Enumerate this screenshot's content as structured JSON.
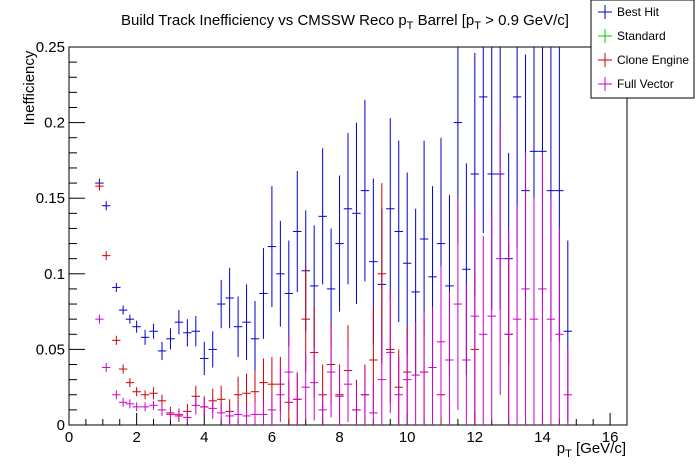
{
  "chart_data": {
    "type": "scatter",
    "title": "Build Track Inefficiency vs CMSSW Reco pT Barrel [pT > 0.9 GeV/c]",
    "title_parts": {
      "t1": "Build Track Inefficiency vs CMSSW Reco p",
      "sub1": "T",
      "t2": " Barrel [p",
      "sub2": "T",
      "t3": " > 0.9 GeV/c]"
    },
    "xlabel": "pT [GeV/c]",
    "xlabel_parts": {
      "main": "p",
      "sub": "T",
      "rest": " [GeV/c]"
    },
    "ylabel": "Inefficiency",
    "xlim": [
      0,
      16.5
    ],
    "ylim": [
      0,
      0.25
    ],
    "x_ticks": [
      "0",
      "2",
      "4",
      "6",
      "8",
      "10",
      "12",
      "14",
      "16"
    ],
    "y_ticks": [
      "0",
      "0.05",
      "0.1",
      "0.15",
      "0.2",
      "0.25"
    ],
    "legend_position": "top-right",
    "series": [
      {
        "name": "Best Hit",
        "color": "#0000cc",
        "points": [
          [
            0.9,
            0.16,
            0.003
          ],
          [
            1.1,
            0.145,
            0.003
          ],
          [
            1.4,
            0.091,
            0.003
          ],
          [
            1.6,
            0.076,
            0.003
          ],
          [
            1.8,
            0.07,
            0.003
          ],
          [
            2.0,
            0.065,
            0.004
          ],
          [
            2.25,
            0.058,
            0.005
          ],
          [
            2.5,
            0.062,
            0.005
          ],
          [
            2.75,
            0.049,
            0.006
          ],
          [
            3.0,
            0.057,
            0.007
          ],
          [
            3.25,
            0.068,
            0.008
          ],
          [
            3.5,
            0.061,
            0.009
          ],
          [
            3.75,
            0.062,
            0.01
          ],
          [
            4.0,
            0.044,
            0.011
          ],
          [
            4.25,
            0.05,
            0.012
          ],
          [
            4.5,
            0.08,
            0.016
          ],
          [
            4.75,
            0.084,
            0.02
          ],
          [
            5.0,
            0.065,
            0.02
          ],
          [
            5.25,
            0.068,
            0.025
          ],
          [
            5.5,
            0.057,
            0.025
          ],
          [
            5.75,
            0.087,
            0.03
          ],
          [
            6.0,
            0.118,
            0.04
          ],
          [
            6.25,
            0.1,
            0.035
          ],
          [
            6.5,
            0.087,
            0.035
          ],
          [
            6.75,
            0.128,
            0.04
          ],
          [
            7.0,
            0.102,
            0.04
          ],
          [
            7.25,
            0.092,
            0.04
          ],
          [
            7.5,
            0.138,
            0.045
          ],
          [
            7.75,
            0.09,
            0.04
          ],
          [
            8.0,
            0.12,
            0.045
          ],
          [
            8.25,
            0.143,
            0.05
          ],
          [
            8.5,
            0.14,
            0.06
          ],
          [
            8.75,
            0.155,
            0.06
          ],
          [
            9.0,
            0.108,
            0.055
          ],
          [
            9.25,
            0.093,
            0.05
          ],
          [
            9.5,
            0.143,
            0.06
          ],
          [
            9.75,
            0.128,
            0.06
          ],
          [
            10.0,
            0.107,
            0.06
          ],
          [
            10.25,
            0.088,
            0.055
          ],
          [
            10.5,
            0.123,
            0.065
          ],
          [
            10.75,
            0.098,
            0.06
          ],
          [
            11.0,
            0.12,
            0.07
          ],
          [
            11.25,
            0.092,
            0.06
          ],
          [
            11.5,
            0.2,
            0.08
          ],
          [
            11.75,
            0.103,
            0.07
          ],
          [
            12.0,
            0.166,
            0.08
          ],
          [
            12.25,
            0.217,
            0.09
          ],
          [
            12.5,
            0.166,
            0.09
          ],
          [
            12.75,
            0.166,
            0.09
          ],
          [
            13.0,
            0.11,
            0.07
          ],
          [
            13.25,
            0.217,
            0.1
          ],
          [
            13.5,
            0.155,
            0.09
          ],
          [
            13.75,
            0.181,
            0.1
          ],
          [
            14.0,
            0.181,
            0.1
          ],
          [
            14.25,
            0.155,
            0.1
          ],
          [
            14.5,
            0.155,
            0.1
          ],
          [
            14.75,
            0.062,
            0.06
          ]
        ]
      },
      {
        "name": "Standard",
        "color": "#00cc00",
        "points": []
      },
      {
        "name": "Clone Engine",
        "color": "#cc0000",
        "points": [
          [
            0.9,
            0.158,
            0.003
          ],
          [
            1.1,
            0.112,
            0.003
          ],
          [
            1.4,
            0.056,
            0.003
          ],
          [
            1.6,
            0.037,
            0.003
          ],
          [
            1.8,
            0.028,
            0.003
          ],
          [
            2.0,
            0.022,
            0.003
          ],
          [
            2.25,
            0.02,
            0.003
          ],
          [
            2.5,
            0.021,
            0.004
          ],
          [
            2.75,
            0.016,
            0.004
          ],
          [
            3.0,
            0.008,
            0.004
          ],
          [
            3.25,
            0.006,
            0.004
          ],
          [
            3.5,
            0.009,
            0.005
          ],
          [
            3.75,
            0.019,
            0.007
          ],
          [
            4.0,
            0.012,
            0.007
          ],
          [
            4.25,
            0.016,
            0.008
          ],
          [
            4.5,
            0.017,
            0.009
          ],
          [
            4.75,
            0.009,
            0.008
          ],
          [
            5.0,
            0.02,
            0.012
          ],
          [
            5.25,
            0.021,
            0.013
          ],
          [
            5.5,
            0.022,
            0.014
          ],
          [
            5.75,
            0.028,
            0.016
          ],
          [
            6.0,
            0.027,
            0.018
          ],
          [
            6.25,
            0.027,
            0.018
          ],
          [
            6.5,
            0.015,
            0.015
          ],
          [
            6.75,
            0.017,
            0.017
          ],
          [
            7.0,
            0.07,
            0.035
          ],
          [
            7.25,
            0.048,
            0.03
          ],
          [
            7.5,
            0.02,
            0.02
          ],
          [
            7.75,
            0.04,
            0.027
          ],
          [
            8.0,
            0.02,
            0.02
          ],
          [
            8.25,
            0.036,
            0.03
          ],
          [
            8.5,
            0.01,
            0.02
          ],
          [
            8.75,
            0.02,
            0.02
          ],
          [
            9.0,
            0.043,
            0.035
          ],
          [
            9.25,
            0.1,
            0.06
          ],
          [
            9.5,
            0.05,
            0.035
          ],
          [
            9.75,
            0.025,
            0.025
          ],
          [
            10.0,
            0.035,
            0.03
          ],
          [
            10.5,
            0.035,
            0.035
          ],
          [
            11.0,
            0.02,
            0.02
          ],
          [
            12.0,
            0.05,
            0.05
          ],
          [
            13.0,
            0.06,
            0.06
          ]
        ]
      },
      {
        "name": "Full Vector",
        "color": "#cc00cc",
        "points": [
          [
            0.9,
            0.07,
            0.003
          ],
          [
            1.1,
            0.038,
            0.003
          ],
          [
            1.4,
            0.02,
            0.003
          ],
          [
            1.6,
            0.015,
            0.003
          ],
          [
            1.8,
            0.014,
            0.003
          ],
          [
            2.0,
            0.012,
            0.003
          ],
          [
            2.25,
            0.012,
            0.003
          ],
          [
            2.5,
            0.013,
            0.003
          ],
          [
            2.75,
            0.01,
            0.004
          ],
          [
            3.0,
            0.007,
            0.004
          ],
          [
            3.25,
            0.007,
            0.004
          ],
          [
            3.5,
            0.005,
            0.004
          ],
          [
            3.75,
            0.013,
            0.006
          ],
          [
            4.0,
            0.012,
            0.006
          ],
          [
            4.25,
            0.011,
            0.007
          ],
          [
            4.5,
            0.008,
            0.006
          ],
          [
            4.75,
            0.006,
            0.006
          ],
          [
            5.0,
            0.007,
            0.007
          ],
          [
            5.25,
            0.006,
            0.007
          ],
          [
            5.5,
            0.007,
            0.008
          ],
          [
            5.75,
            0.007,
            0.009
          ],
          [
            6.0,
            0.01,
            0.01
          ],
          [
            6.25,
            0.02,
            0.018
          ],
          [
            6.5,
            0.035,
            0.025
          ],
          [
            6.75,
            0.017,
            0.018
          ],
          [
            7.0,
            0.025,
            0.022
          ],
          [
            7.25,
            0.028,
            0.025
          ],
          [
            7.5,
            0.01,
            0.012
          ],
          [
            7.75,
            0.035,
            0.03
          ],
          [
            8.0,
            0.019,
            0.02
          ],
          [
            8.25,
            0.027,
            0.025
          ],
          [
            8.5,
            0.01,
            0.015
          ],
          [
            8.75,
            0.02,
            0.02
          ],
          [
            9.0,
            0.008,
            0.02
          ],
          [
            9.25,
            0.03,
            0.03
          ],
          [
            9.5,
            0.048,
            0.04
          ],
          [
            9.75,
            0.02,
            0.025
          ],
          [
            10.0,
            0.03,
            0.03
          ],
          [
            10.25,
            0.033,
            0.035
          ],
          [
            10.5,
            0.035,
            0.04
          ],
          [
            10.75,
            0.038,
            0.04
          ],
          [
            11.0,
            0.055,
            0.05
          ],
          [
            11.25,
            0.043,
            0.045
          ],
          [
            11.5,
            0.08,
            0.07
          ],
          [
            11.75,
            0.043,
            0.05
          ],
          [
            12.0,
            0.072,
            0.07
          ],
          [
            12.25,
            0.06,
            0.065
          ],
          [
            12.5,
            0.072,
            0.07
          ],
          [
            12.75,
            0.11,
            0.09
          ],
          [
            13.0,
            0.06,
            0.07
          ],
          [
            13.25,
            0.07,
            0.075
          ],
          [
            13.5,
            0.09,
            0.09
          ],
          [
            13.75,
            0.07,
            0.08
          ],
          [
            14.0,
            0.09,
            0.09
          ],
          [
            14.25,
            0.07,
            0.08
          ],
          [
            14.5,
            0.06,
            0.07
          ],
          [
            14.75,
            0.02,
            0.03
          ]
        ]
      }
    ]
  }
}
